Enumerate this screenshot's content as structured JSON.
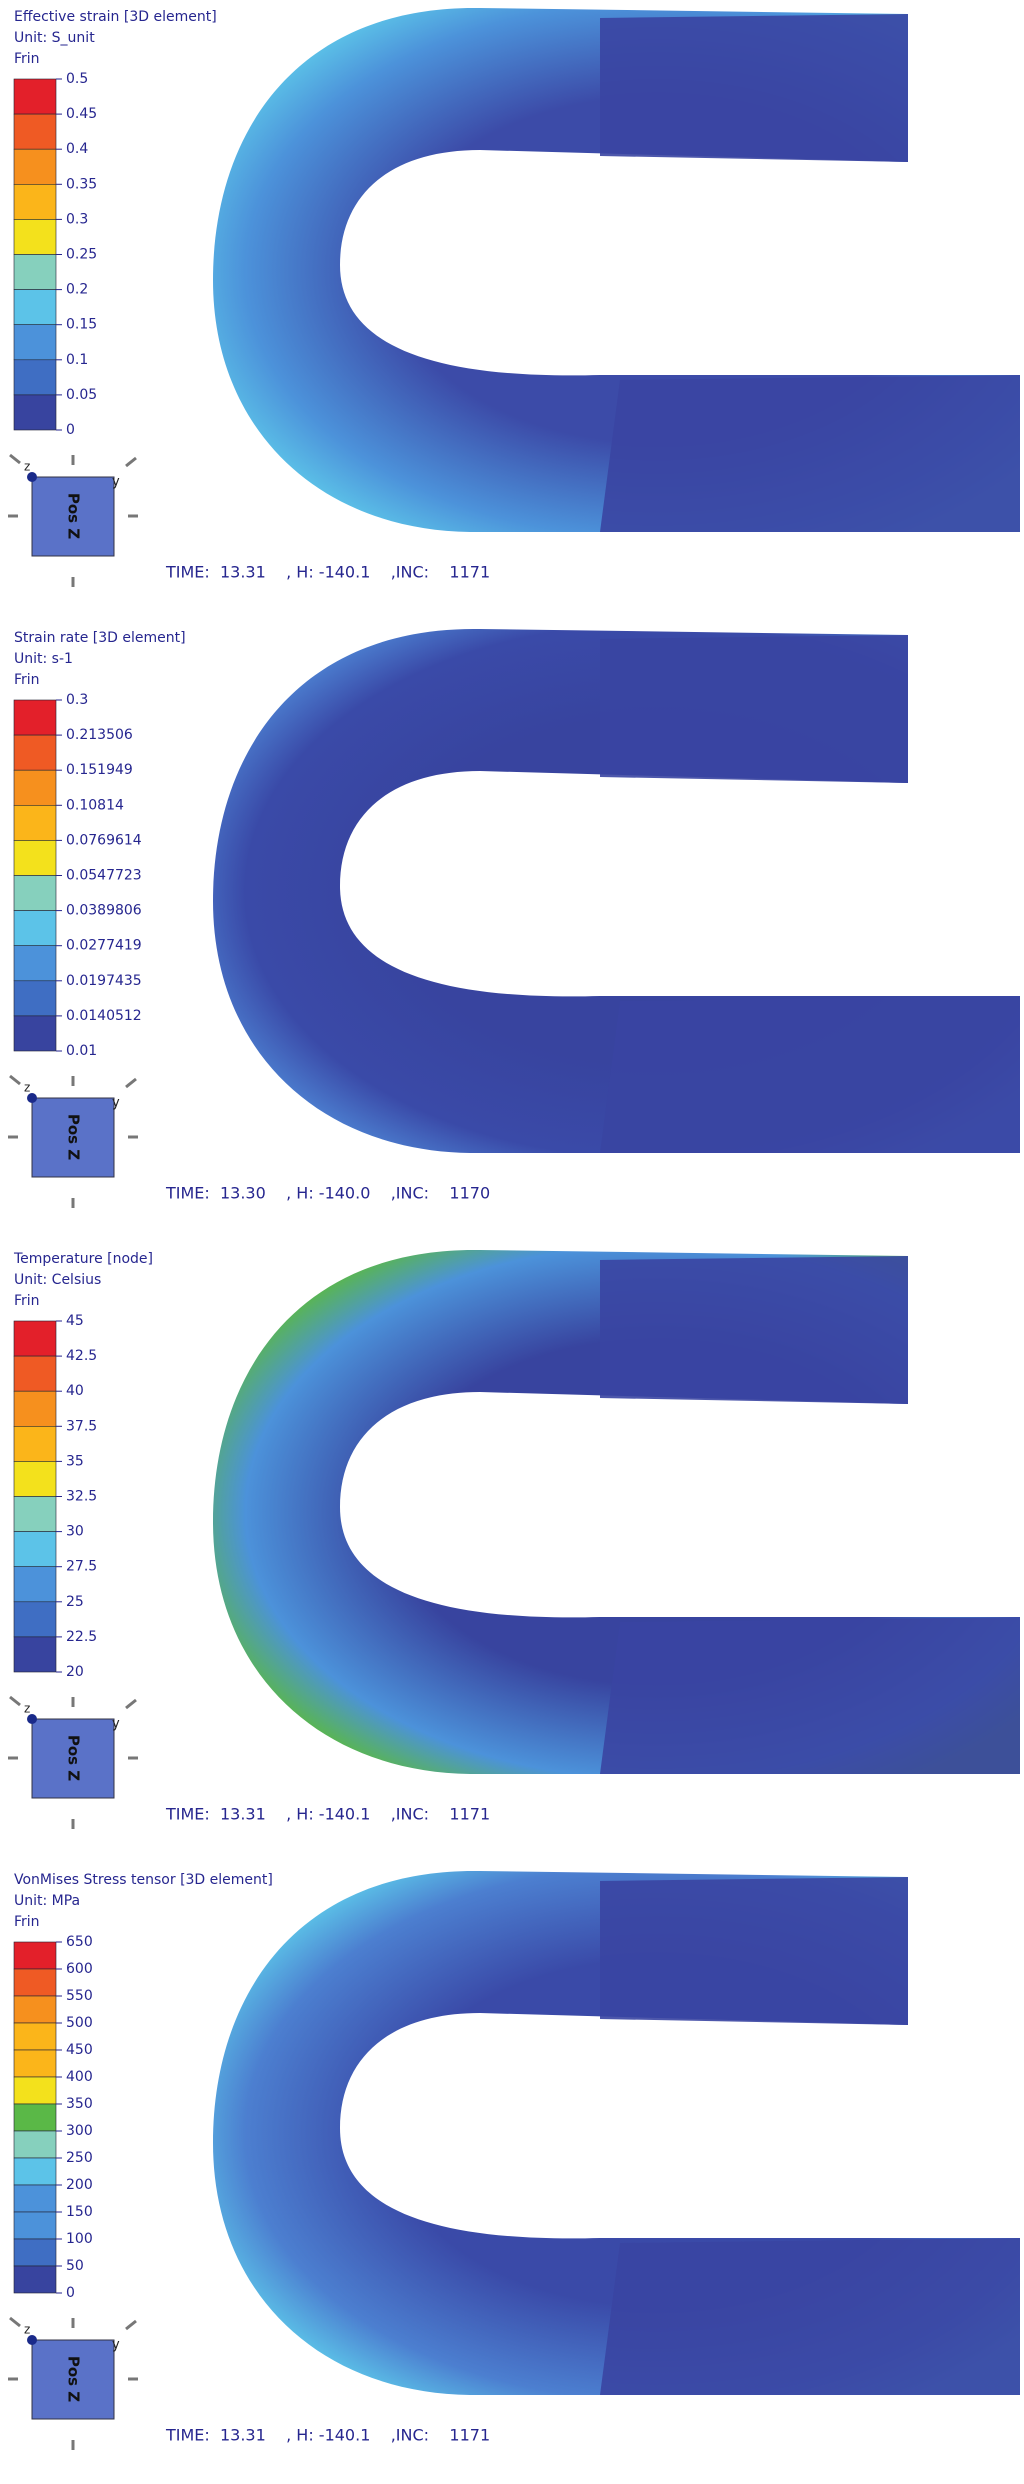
{
  "panels": [
    {
      "title": "Effective strain [3D element]",
      "unit": "Unit: S_unit",
      "frin": "Frin",
      "legend": [
        "0.5",
        "0.45",
        "0.4",
        "0.35",
        "0.3",
        "0.25",
        "0.2",
        "0.15",
        "0.1",
        "0.05",
        "0"
      ],
      "axis": {
        "label": "Pos Z",
        "z": "z",
        "y": "y"
      },
      "status": "TIME:  13.31    , H: -140.1    ,INC:    1171"
    },
    {
      "title": "Strain rate [3D element]",
      "unit": "Unit: s-1",
      "frin": "Frin",
      "legend": [
        "0.3",
        "0.213506",
        "0.151949",
        "0.10814",
        "0.0769614",
        "0.0547723",
        "0.0389806",
        "0.0277419",
        "0.0197435",
        "0.0140512",
        "0.01"
      ],
      "axis": {
        "label": "Pos Z",
        "z": "z",
        "y": "y"
      },
      "status": "TIME:  13.30    , H: -140.0    ,INC:    1170"
    },
    {
      "title": "Temperature [node]",
      "unit": "Unit: Celsius",
      "frin": "Frin",
      "legend": [
        "45",
        "42.5",
        "40",
        "37.5",
        "35",
        "32.5",
        "30",
        "27.5",
        "25",
        "22.5",
        "20"
      ],
      "axis": {
        "label": "Pos Z",
        "z": "z",
        "y": "y"
      },
      "status": "TIME:  13.31    , H: -140.1    ,INC:    1171"
    },
    {
      "title": "VonMises Stress tensor [3D element]",
      "unit": "Unit: MPa",
      "frin": "Frin",
      "legend": [
        "650",
        "600",
        "550",
        "500",
        "450",
        "400",
        "350",
        "300",
        "250",
        "200",
        "150",
        "100",
        "50",
        "0"
      ],
      "axis": {
        "label": "Pos Z",
        "z": "z",
        "y": "y"
      },
      "status": "TIME:  13.31    , H: -140.1    ,INC:    1171"
    }
  ]
}
